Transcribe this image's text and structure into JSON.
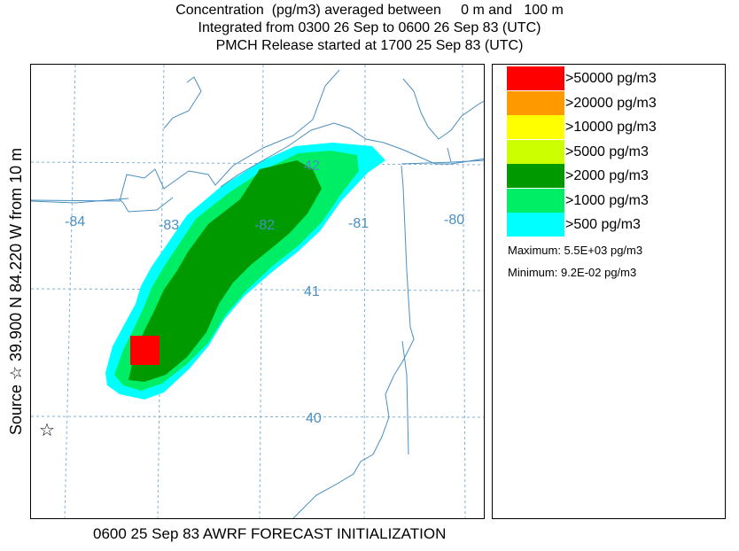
{
  "title": {
    "line1": "Concentration  (pg/m3) averaged between     0 m and   100 m",
    "line2": "Integrated from 0300 26 Sep to 0600 26 Sep 83 (UTC)",
    "line3": "PMCH Release started at 1700 25 Sep 83 (UTC)"
  },
  "side_label": "Source ☆  39.900  N  84.220  W   from   10 m",
  "footer": "0600 25 Sep 83 AWRF FORECAST INITIALIZATION",
  "map": {
    "longitude_labels": [
      "-84",
      "-83",
      "-82",
      "-81",
      "-80"
    ],
    "latitude_labels": [
      "42",
      "41",
      "40"
    ],
    "source_marker": "☆",
    "colors": {
      "grid": "#7fb2d8",
      "boundary": "#4a8fc0",
      "label": "#4a8fc0"
    }
  },
  "legend": {
    "items": [
      {
        "label": ">50000 pg/m3",
        "color": "#ff0000"
      },
      {
        "label": ">20000 pg/m3",
        "color": "#ff9900"
      },
      {
        "label": ">10000 pg/m3",
        "color": "#ffff00"
      },
      {
        "label": ">5000 pg/m3",
        "color": "#ccff00"
      },
      {
        "label": ">2000 pg/m3",
        "color": "#009900"
      },
      {
        "label": ">1000 pg/m3",
        "color": "#00ee66"
      },
      {
        "label": ">500 pg/m3",
        "color": "#00ffff"
      }
    ],
    "maximum": "Maximum: 5.5E+03 pg/m3",
    "minimum": "Minimum: 9.2E-02 pg/m3"
  }
}
